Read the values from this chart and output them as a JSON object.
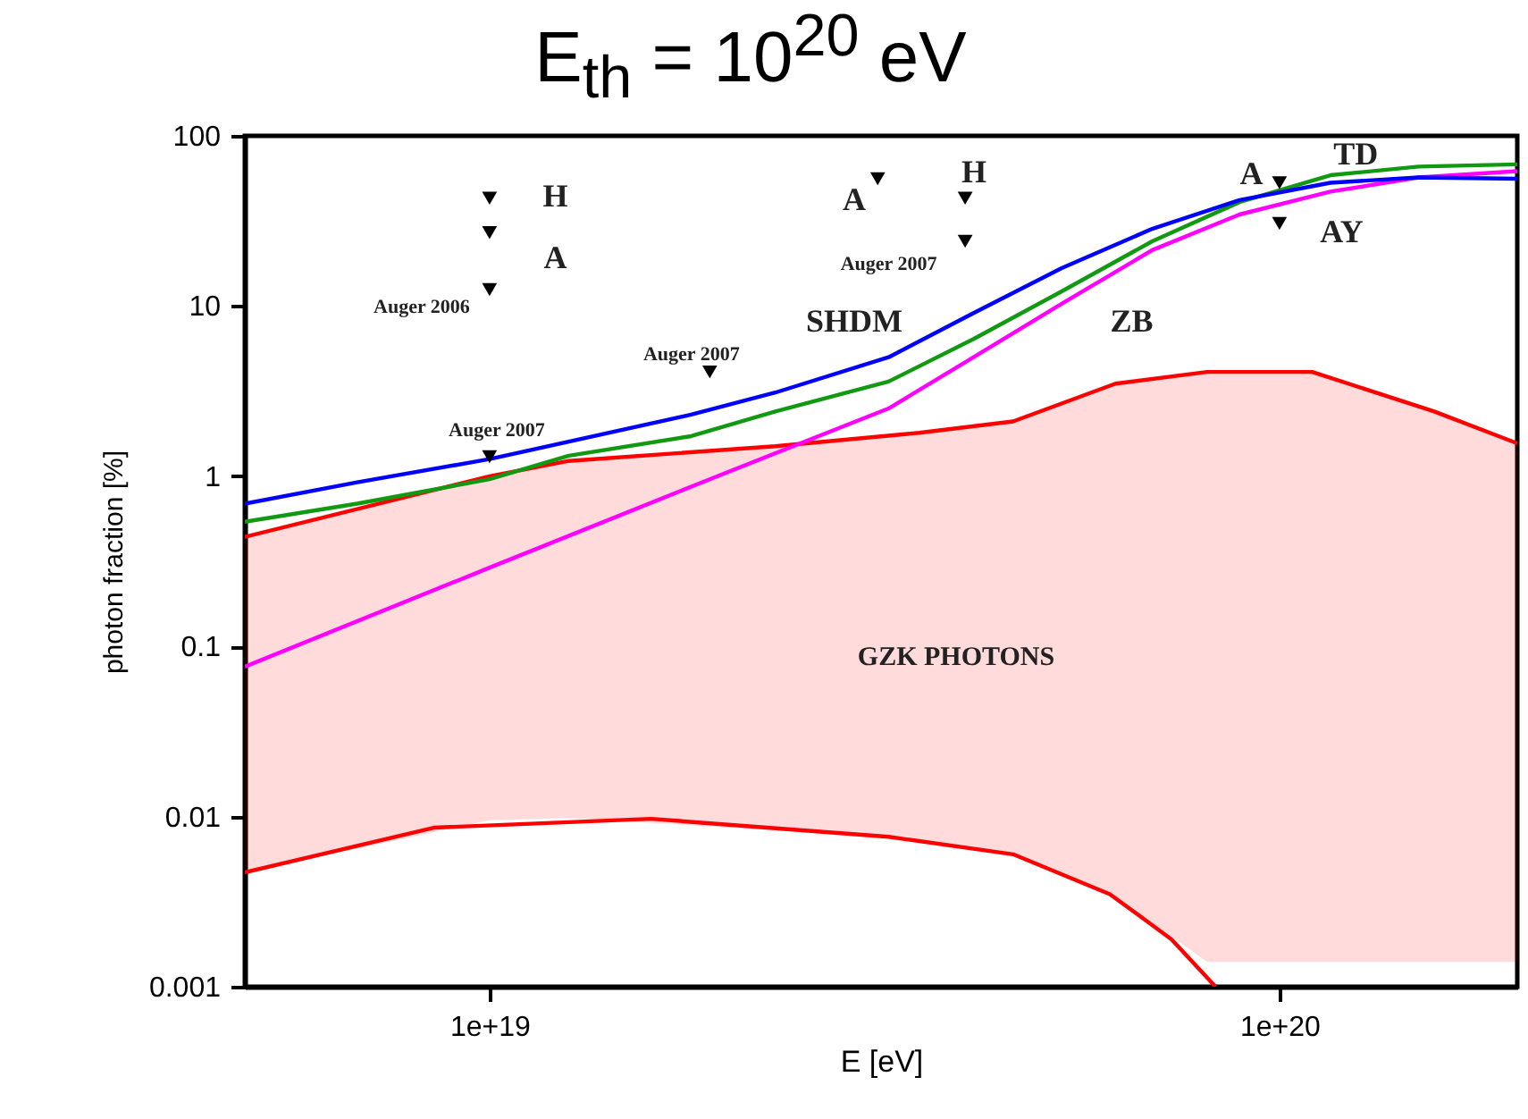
{
  "chart_data": {
    "type": "line",
    "title": "E$_{th}$ = 10$^{20}$ eV",
    "xlabel": "E [eV]",
    "ylabel": "photon fraction [%]",
    "log": "xy",
    "grid": false,
    "xlim": [
      4.9e+18,
      2e+20
    ],
    "xticks": [
      {
        "value": 1e+19,
        "label": "1e+19"
      },
      {
        "value": 1e+20,
        "label": "1e+20"
      }
    ],
    "ylim": [
      0.001,
      100
    ],
    "yticks": [
      0.001,
      0.01,
      0.1,
      1,
      10,
      100
    ],
    "series": [
      {
        "color": "#ff0000",
        "x": [
          4.9e+18,
          1e+19,
          1.26e+19,
          2.3e+19,
          3.5e+19,
          4.6e+19,
          6.2e+19,
          8.1e+19,
          1.1e+20,
          1.57e+20,
          2e+20
        ],
        "values": [
          0.44,
          1.0,
          1.23,
          1.5,
          1.8,
          2.1,
          3.5,
          4.1,
          4.1,
          2.4,
          1.56
        ],
        "upper": [
          0.44,
          1.0,
          1.23,
          1.5,
          1.8,
          2.1,
          3.5,
          4.1,
          4.1,
          2.4,
          1.56
        ],
        "lower": [
          0.0047,
          0.0095,
          0.0098,
          0.0083,
          0.0072,
          0.006,
          0.0034,
          0.0014,
          0.0014,
          0.0014,
          0.0014
        ]
      },
      {
        "color": "#ff0000",
        "x": [
          4.9e+18,
          8.5e+18,
          1.6e+19,
          3.2e+19,
          4.6e+19,
          6.1e+19,
          7.3e+19,
          8.3e+19
        ],
        "values": [
          0.0047,
          0.0086,
          0.0097,
          0.0076,
          0.006,
          0.0035,
          0.0019,
          0.001
        ]
      },
      {
        "color": "#ff00ff",
        "x": [
          4.9e+18,
          1e+19,
          1.9e+19,
          3.2e+19,
          4.1e+19,
          5.3e+19,
          6.9e+19,
          8.9e+19,
          1.16e+20,
          1.5e+20,
          2e+20
        ],
        "values": [
          0.076,
          0.29,
          0.96,
          2.5,
          5.0,
          10.3,
          21.3,
          34.5,
          47,
          57,
          62
        ]
      },
      {
        "color": "#119911",
        "x": [
          4.9e+18,
          6.8e+18,
          1e+19,
          1.26e+19,
          1.8e+19,
          2.3e+19,
          3.2e+19,
          4.1e+19,
          5.3e+19,
          6.9e+19,
          8.9e+19,
          1.16e+20,
          1.5e+20,
          2e+20
        ],
        "values": [
          0.54,
          0.69,
          0.96,
          1.32,
          1.72,
          2.4,
          3.6,
          6.4,
          12.2,
          24,
          40.8,
          58.7,
          66,
          68
        ]
      },
      {
        "color": "#0000ff",
        "x": [
          4.9e+18,
          6.8e+18,
          1e+19,
          1.8e+19,
          2.3e+19,
          3.2e+19,
          4.1e+19,
          5.3e+19,
          6.9e+19,
          8.9e+19,
          1.16e+20,
          1.5e+20,
          2e+20
        ],
        "values": [
          0.69,
          0.92,
          1.26,
          2.3,
          3.1,
          5.0,
          9.1,
          16.7,
          28.4,
          41.9,
          53,
          57,
          56
        ]
      },
      {
        "type": "scatter",
        "color": "#000000",
        "marker": "triangle",
        "x": [
          1e+19,
          1e+19,
          1e+19,
          1e+19,
          1.9e+19,
          3.1e+19,
          4e+19,
          4e+19,
          1e+20,
          1e+20
        ],
        "values": [
          43,
          27,
          12.5,
          1.3,
          4.1,
          56,
          43,
          24,
          53,
          30.6
        ]
      }
    ],
    "annotations": [
      "H",
      "A",
      "Auger 2006",
      "Auger 2007",
      "Auger 2007",
      "A",
      "H",
      "Auger 2007",
      "SHDM",
      "ZB",
      "A",
      "TD",
      "AY",
      "GZK PHOTONS"
    ]
  }
}
